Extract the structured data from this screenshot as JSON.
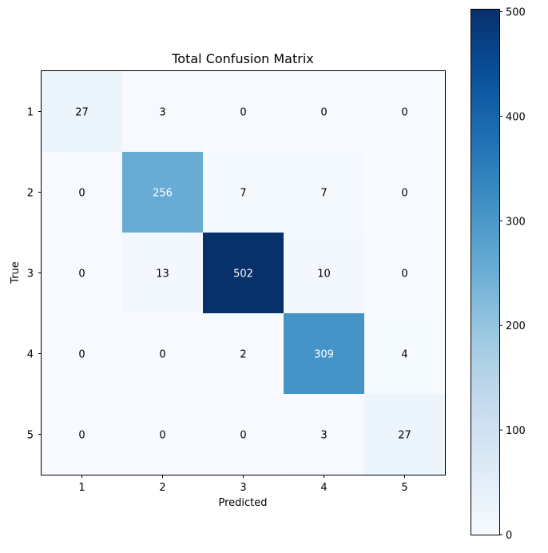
{
  "chart_data": {
    "type": "heatmap",
    "title": "Total Confusion Matrix",
    "xlabel": "Predicted",
    "ylabel": "True",
    "x_categories": [
      "1",
      "2",
      "3",
      "4",
      "5"
    ],
    "y_categories": [
      "1",
      "2",
      "3",
      "4",
      "5"
    ],
    "values": [
      [
        27,
        3,
        0,
        0,
        0
      ],
      [
        0,
        256,
        7,
        7,
        0
      ],
      [
        0,
        13,
        502,
        10,
        0
      ],
      [
        0,
        0,
        2,
        309,
        4
      ],
      [
        0,
        0,
        0,
        3,
        27
      ]
    ],
    "colormap": "Blues",
    "color_range": [
      0,
      502
    ],
    "colorbar_ticks": [
      0,
      100,
      200,
      300,
      400,
      500
    ],
    "colorbar_tick_labels": [
      "0",
      "100",
      "200",
      "300",
      "400",
      "500"
    ],
    "grid": false,
    "colors": {
      "low": "#f7fbff",
      "high": "#08306b",
      "text_dark": "#000000",
      "text_light": "#ffffff"
    }
  }
}
